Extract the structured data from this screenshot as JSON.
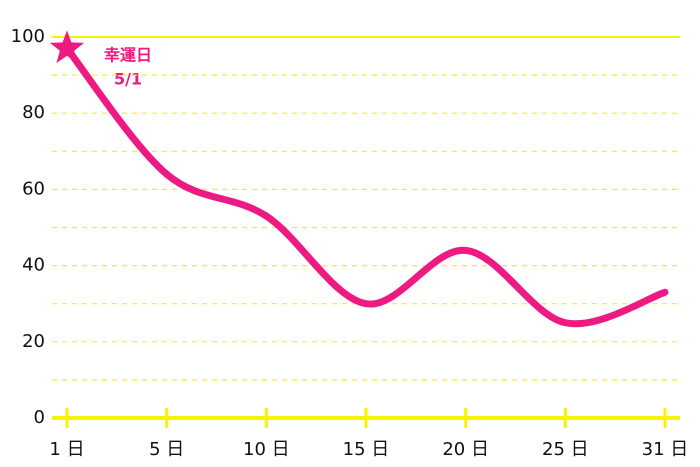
{
  "chart_data": {
    "type": "line",
    "categories": [
      "1 日",
      "5 日",
      "10 日",
      "15 日",
      "20 日",
      "25 日",
      "31 日"
    ],
    "values": [
      97,
      64,
      53,
      30,
      44,
      25,
      33
    ],
    "color": "#ec1a82",
    "axis_color": "#f5f500",
    "ylim": [
      0,
      100
    ],
    "yticks": [
      0,
      20,
      40,
      60,
      80,
      100
    ],
    "grid_lines": [
      10,
      20,
      30,
      40,
      50,
      60,
      70,
      80,
      90,
      100
    ],
    "grid": true,
    "smooth": true,
    "annotation": [
      "幸運日",
      "5/1"
    ]
  }
}
